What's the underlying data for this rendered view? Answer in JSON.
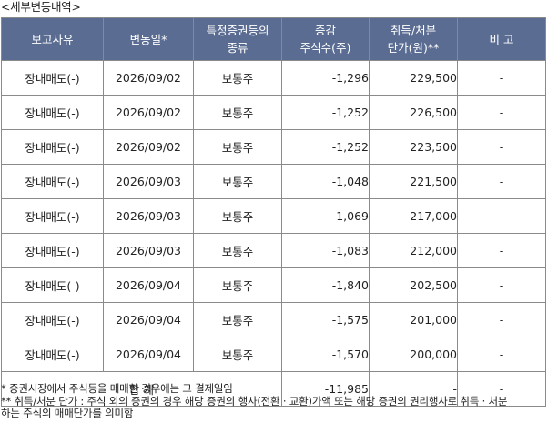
{
  "section_title": "<세부변동내역>",
  "columns": [
    {
      "label": "보고사유"
    },
    {
      "label": "변동일*"
    },
    {
      "label": "특정증권등의\n종류"
    },
    {
      "label": "증감\n주식수(주)"
    },
    {
      "label": "취득/처분\n단가(원)**"
    },
    {
      "label": "비 고"
    }
  ],
  "rows": [
    {
      "reason": "장내매도(-)",
      "date": "2026/09/02",
      "type": "보통주",
      "change": "-1,296",
      "price": "229,500",
      "note": "-"
    },
    {
      "reason": "장내매도(-)",
      "date": "2026/09/02",
      "type": "보통주",
      "change": "-1,252",
      "price": "226,500",
      "note": "-"
    },
    {
      "reason": "장내매도(-)",
      "date": "2026/09/02",
      "type": "보통주",
      "change": "-1,252",
      "price": "223,500",
      "note": "-"
    },
    {
      "reason": "장내매도(-)",
      "date": "2026/09/03",
      "type": "보통주",
      "change": "-1,048",
      "price": "221,500",
      "note": "-"
    },
    {
      "reason": "장내매도(-)",
      "date": "2026/09/03",
      "type": "보통주",
      "change": "-1,069",
      "price": "217,000",
      "note": "-"
    },
    {
      "reason": "장내매도(-)",
      "date": "2026/09/03",
      "type": "보통주",
      "change": "-1,083",
      "price": "212,000",
      "note": "-"
    },
    {
      "reason": "장내매도(-)",
      "date": "2026/09/04",
      "type": "보통주",
      "change": "-1,840",
      "price": "202,500",
      "note": "-"
    },
    {
      "reason": "장내매도(-)",
      "date": "2026/09/04",
      "type": "보통주",
      "change": "-1,575",
      "price": "201,000",
      "note": "-"
    },
    {
      "reason": "장내매도(-)",
      "date": "2026/09/04",
      "type": "보통주",
      "change": "-1,570",
      "price": "200,000",
      "note": "-"
    }
  ],
  "total": {
    "label": "합 계",
    "change": "-11,985",
    "price": "-",
    "note": "-"
  },
  "notes": [
    "* 증권시장에서 주식등을 매매한 경우에는 그 결제일임",
    "** 취득/처분 단가 : 주식 외의 증권의 경우 해당 증권의 행사(전환 · 교환)가액 또는 해당 증권의 권리행사로 취득 · 처분",
    "하는 주식의 매매단가를 의미함"
  ],
  "colors": {
    "header_bg": "#5a6c92",
    "header_text": "#ffffff",
    "border": "#8a8a8a"
  }
}
